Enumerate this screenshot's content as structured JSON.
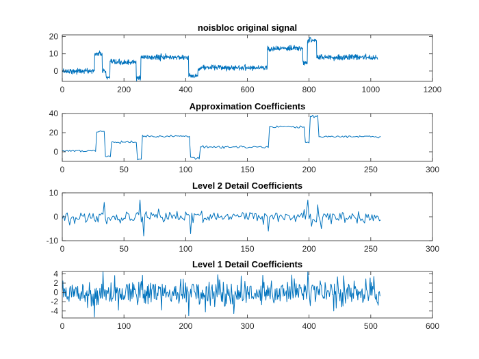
{
  "chart_data": [
    {
      "type": "line",
      "title": "noisbloc original signal",
      "xlim": [
        0,
        1200
      ],
      "ylim": [
        -6,
        21
      ],
      "xticks": [
        0,
        200,
        400,
        600,
        800,
        1000,
        1200
      ],
      "xtick_labels": [
        "0",
        "200",
        "400",
        "600",
        "800",
        "1000",
        "1200"
      ],
      "yticks": [
        0,
        10,
        20
      ],
      "ytick_labels": [
        "0",
        "10",
        "20"
      ],
      "color": "#0072BD",
      "grid": false,
      "segments": [
        {
          "x_start": 0,
          "x_end": 105,
          "level": 0
        },
        {
          "x_start": 105,
          "x_end": 130,
          "level": 10
        },
        {
          "x_start": 130,
          "x_end": 142,
          "level": 0
        },
        {
          "x_start": 142,
          "x_end": 155,
          "level": -4
        },
        {
          "x_start": 155,
          "x_end": 240,
          "level": 5
        },
        {
          "x_start": 240,
          "x_end": 255,
          "level": -4
        },
        {
          "x_start": 255,
          "x_end": 410,
          "level": 8
        },
        {
          "x_start": 410,
          "x_end": 440,
          "level": -3
        },
        {
          "x_start": 440,
          "x_end": 665,
          "level": 2
        },
        {
          "x_start": 665,
          "x_end": 780,
          "level": 13
        },
        {
          "x_start": 780,
          "x_end": 795,
          "level": 5
        },
        {
          "x_start": 795,
          "x_end": 825,
          "level": 18
        },
        {
          "x_start": 825,
          "x_end": 1024,
          "level": 8
        }
      ],
      "n_points": 1024,
      "noise_amplitude": 1.4
    },
    {
      "type": "line",
      "title": "Approximation Coefficients",
      "xlim": [
        0,
        300
      ],
      "ylim": [
        -10,
        40
      ],
      "xticks": [
        0,
        50,
        100,
        150,
        200,
        250,
        300
      ],
      "xtick_labels": [
        "0",
        "50",
        "100",
        "150",
        "200",
        "250",
        "300"
      ],
      "yticks": [
        0,
        20,
        40
      ],
      "ytick_labels": [
        "0",
        "20",
        "40"
      ],
      "color": "#0072BD",
      "grid": false,
      "segments": [
        {
          "x_start": 0,
          "x_end": 28,
          "level": 1
        },
        {
          "x_start": 28,
          "x_end": 35,
          "level": 21
        },
        {
          "x_start": 35,
          "x_end": 40,
          "level": -5
        },
        {
          "x_start": 40,
          "x_end": 61,
          "level": 10
        },
        {
          "x_start": 61,
          "x_end": 65,
          "level": -8
        },
        {
          "x_start": 65,
          "x_end": 104,
          "level": 16
        },
        {
          "x_start": 104,
          "x_end": 112,
          "level": -6
        },
        {
          "x_start": 112,
          "x_end": 168,
          "level": 5
        },
        {
          "x_start": 168,
          "x_end": 197,
          "level": 26
        },
        {
          "x_start": 197,
          "x_end": 201,
          "level": 10
        },
        {
          "x_start": 201,
          "x_end": 208,
          "level": 37
        },
        {
          "x_start": 208,
          "x_end": 259,
          "level": 16
        }
      ],
      "n_points": 259,
      "noise_amplitude": 1.1
    },
    {
      "type": "line",
      "title": "Level 2 Detail Coefficients",
      "xlim": [
        0,
        300
      ],
      "ylim": [
        -10,
        10
      ],
      "xticks": [
        0,
        50,
        100,
        150,
        200,
        250,
        300
      ],
      "xtick_labels": [
        "0",
        "50",
        "100",
        "150",
        "200",
        "250",
        "300"
      ],
      "yticks": [
        -10,
        0,
        10
      ],
      "ytick_labels": [
        "-10",
        "0",
        "10"
      ],
      "color": "#0072BD",
      "grid": false,
      "n_points": 259,
      "noise_amplitude": 2.2,
      "spikes": [
        {
          "x": 34,
          "y": 6
        },
        {
          "x": 36,
          "y": -3
        },
        {
          "x": 63,
          "y": 7
        },
        {
          "x": 66,
          "y": -8
        },
        {
          "x": 104,
          "y": -7
        },
        {
          "x": 167,
          "y": -6
        },
        {
          "x": 199,
          "y": 7
        },
        {
          "x": 202,
          "y": -4
        },
        {
          "x": 207,
          "y": 5
        },
        {
          "x": 210,
          "y": -5
        }
      ]
    },
    {
      "type": "line",
      "title": "Level 1 Detail Coefficients",
      "xlim": [
        0,
        600
      ],
      "ylim": [
        -5.5,
        4.5
      ],
      "xticks": [
        0,
        100,
        200,
        300,
        400,
        500,
        600
      ],
      "xtick_labels": [
        "0",
        "100",
        "200",
        "300",
        "400",
        "500",
        "600"
      ],
      "yticks": [
        -4,
        -2,
        0,
        2,
        4
      ],
      "ytick_labels": [
        "-4",
        "-2",
        "0",
        "2",
        "4"
      ],
      "color": "#0072BD",
      "grid": false,
      "n_points": 516,
      "noise_amplitude": 2.6,
      "spikes": [
        {
          "x": 52,
          "y": -5.3
        },
        {
          "x": 66,
          "y": 4.5
        },
        {
          "x": 130,
          "y": 3.7
        },
        {
          "x": 205,
          "y": -5.0
        },
        {
          "x": 252,
          "y": 3.8
        },
        {
          "x": 325,
          "y": 3.7
        },
        {
          "x": 398,
          "y": 4.6
        },
        {
          "x": 440,
          "y": -4.0
        },
        {
          "x": 505,
          "y": 3.4
        }
      ]
    }
  ]
}
